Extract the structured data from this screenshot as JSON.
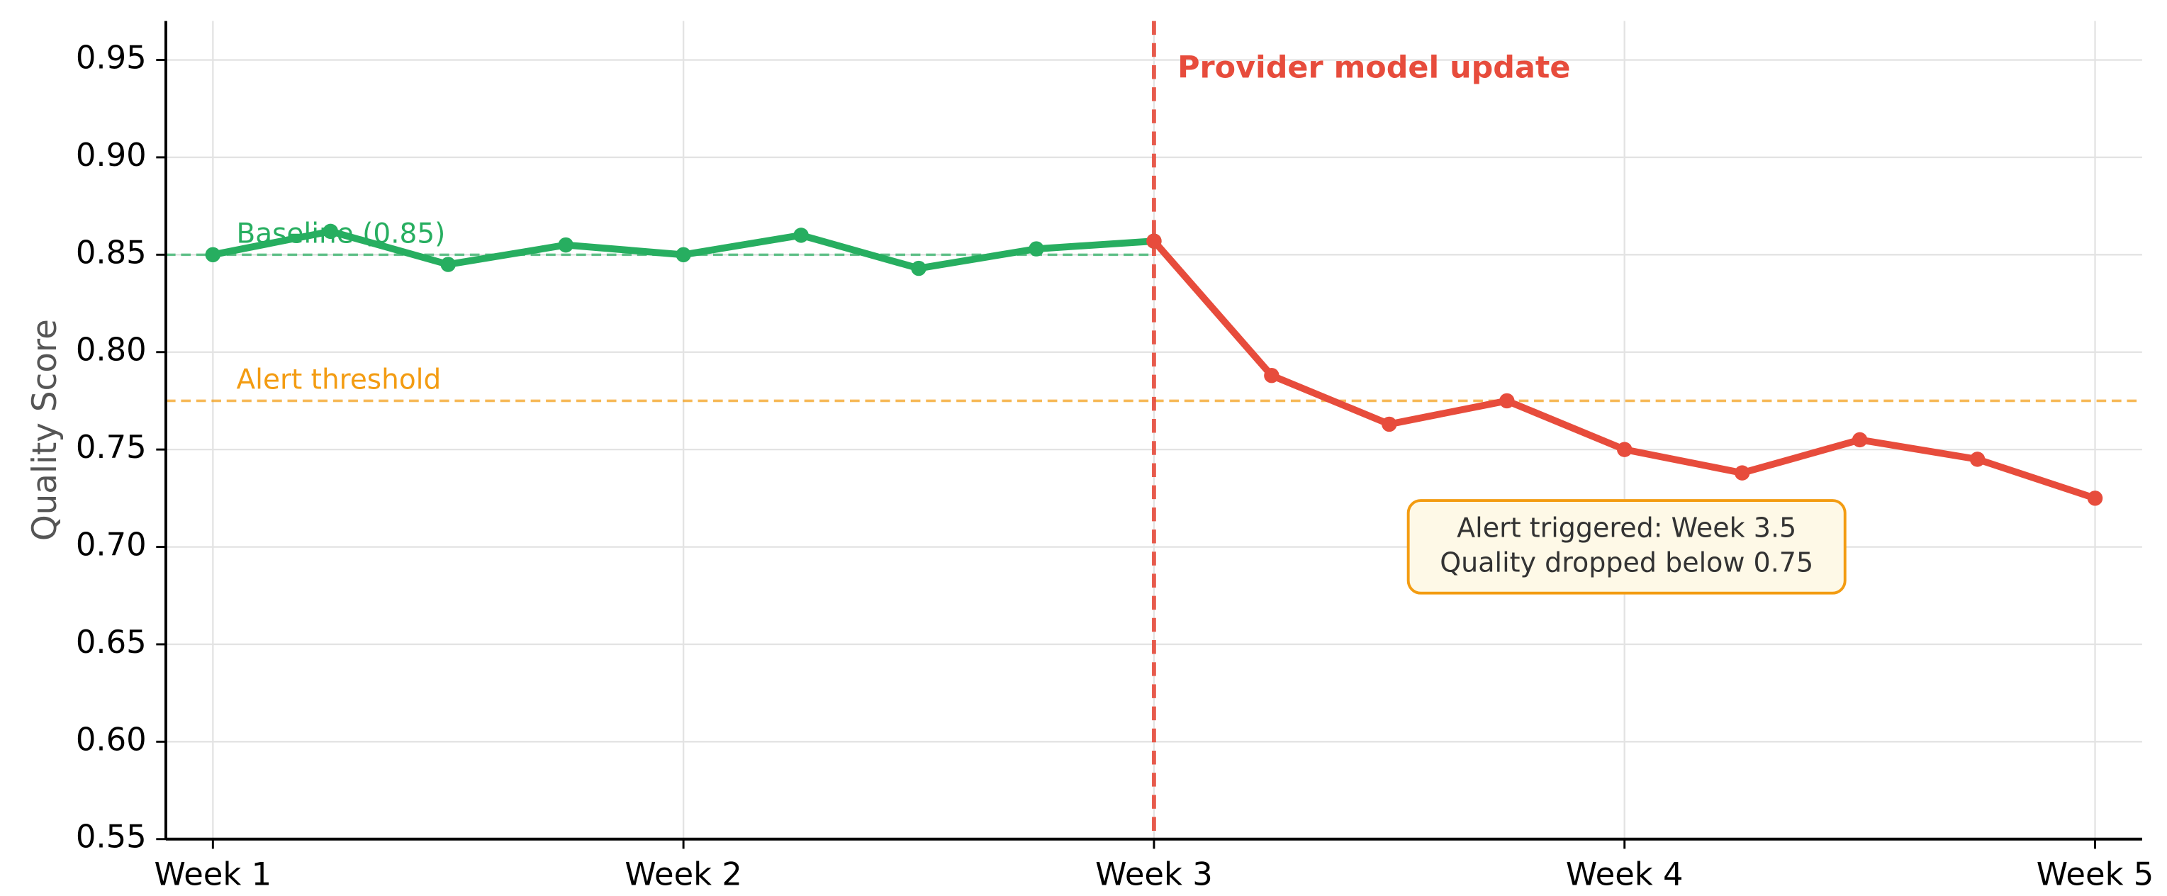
{
  "chart_data": {
    "type": "line",
    "y_label": "Quality Score",
    "xlim": [
      0.9,
      5.1
    ],
    "ylim": [
      0.55,
      0.97
    ],
    "xticks": [
      {
        "value": 1,
        "label": "Week 1"
      },
      {
        "value": 2,
        "label": "Week 2"
      },
      {
        "value": 3,
        "label": "Week 3"
      },
      {
        "value": 4,
        "label": "Week 4"
      },
      {
        "value": 5,
        "label": "Week 5"
      }
    ],
    "yticks": [
      0.55,
      {
        "value": 0.6,
        "label": "0.60"
      },
      0.65,
      {
        "value": 0.7,
        "label": "0.70"
      },
      0.75,
      {
        "value": 0.8,
        "label": "0.80"
      },
      0.85,
      {
        "value": 0.9,
        "label": "0.90"
      },
      0.95
    ],
    "grid": true,
    "series": [
      {
        "color": "#27ae60",
        "x": [
          1,
          1.25,
          1.5,
          1.75,
          2,
          2.25,
          2.5,
          2.75,
          3
        ],
        "values": [
          0.85,
          0.862,
          0.845,
          0.855,
          0.85,
          0.86,
          0.843,
          0.853,
          0.857
        ]
      },
      {
        "color": "#e74c3c",
        "x": [
          3,
          3.25,
          3.5,
          3.75,
          4,
          4.25,
          4.5,
          4.75,
          5
        ],
        "values": [
          0.857,
          0.788,
          0.763,
          0.775,
          0.75,
          0.738,
          0.755,
          0.745,
          0.725
        ]
      }
    ],
    "reference_lines": [
      {
        "value": 0.85,
        "x_end": 3,
        "label": "Baseline (0.85)",
        "color": "#27ae60"
      },
      {
        "value": 0.775,
        "label": "Alert threshold",
        "color": "#f39c12"
      }
    ],
    "vertical_line": {
      "value": 3,
      "label": "Provider model update",
      "color": "#e74c3c"
    },
    "annotation": {
      "lines": [
        "Alert triggered: Week 3.5",
        "Quality dropped below 0.75"
      ]
    }
  }
}
